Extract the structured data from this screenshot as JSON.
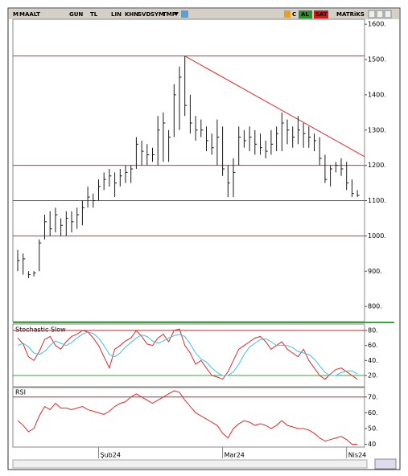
{
  "toolbar": {
    "logo": "M",
    "symbol": "MAALT",
    "buttons": [
      "GUN",
      "TL",
      "LIN",
      "KHN",
      "SVD",
      "SYM",
      "TMP"
    ],
    "right": [
      "C",
      "AL",
      "SAT",
      "MATRiKS"
    ]
  },
  "chart_data": [
    {
      "type": "ohlc",
      "categories": [
        null,
        null,
        null,
        null,
        null,
        null,
        null,
        null,
        null,
        null,
        null,
        null,
        null,
        null,
        null,
        "Şub24",
        null,
        null,
        null,
        null,
        null,
        null,
        null,
        null,
        null,
        null,
        null,
        null,
        null,
        null,
        null,
        null,
        null,
        null,
        null,
        null,
        null,
        null,
        "Mar24",
        null,
        null,
        null,
        null,
        null,
        null,
        null,
        null,
        null,
        null,
        null,
        null,
        null,
        null,
        null,
        null,
        null,
        null,
        null,
        null,
        null,
        null,
        "Nis24",
        null,
        null
      ],
      "high": [
        960,
        950,
        900,
        900,
        990,
        1060,
        1070,
        1080,
        1050,
        1070,
        1070,
        1080,
        1100,
        1140,
        1120,
        1160,
        1180,
        1190,
        1180,
        1190,
        1200,
        1200,
        1280,
        1270,
        1260,
        1250,
        1340,
        1350,
        1300,
        1430,
        1480,
        1510,
        1400,
        1340,
        1330,
        1310,
        1290,
        1330,
        1310,
        1200,
        1220,
        1310,
        1300,
        1310,
        1300,
        1290,
        1270,
        1300,
        1310,
        1350,
        1330,
        1310,
        1340,
        1320,
        1310,
        1290,
        1280,
        1230,
        1200,
        1210,
        1220,
        1210,
        1160,
        1130
      ],
      "low": [
        900,
        890,
        880,
        885,
        900,
        990,
        1000,
        1010,
        1000,
        1000,
        1010,
        1020,
        1030,
        1080,
        1080,
        1100,
        1130,
        1140,
        1110,
        1140,
        1150,
        1150,
        1190,
        1200,
        1200,
        1210,
        1200,
        1210,
        1210,
        1280,
        1300,
        1340,
        1290,
        1270,
        1280,
        1240,
        1230,
        1200,
        1170,
        1110,
        1110,
        1200,
        1250,
        1240,
        1230,
        1230,
        1220,
        1230,
        1240,
        1240,
        1260,
        1250,
        1260,
        1250,
        1250,
        1240,
        1200,
        1150,
        1140,
        1180,
        1170,
        1130,
        1110,
        1110
      ],
      "close": [
        930,
        935,
        890,
        895,
        980,
        1040,
        1020,
        1060,
        1030,
        1050,
        1040,
        1060,
        1080,
        1110,
        1100,
        1140,
        1160,
        1170,
        1150,
        1170,
        1180,
        1190,
        1260,
        1240,
        1230,
        1230,
        1300,
        1320,
        1280,
        1400,
        1450,
        1370,
        1320,
        1300,
        1300,
        1270,
        1250,
        1280,
        1190,
        1150,
        1180,
        1280,
        1270,
        1280,
        1260,
        1250,
        1240,
        1260,
        1290,
        1320,
        1300,
        1280,
        1300,
        1290,
        1280,
        1270,
        1220,
        1160,
        1190,
        1200,
        1190,
        1150,
        1120,
        1115
      ],
      "color": "#1a1a1a",
      "hlines": [
        1510,
        1200,
        1100,
        1000
      ],
      "hline_color": "#e0282c",
      "trendline": {
        "from": [
          31,
          1510
        ],
        "to": [
          64.3,
          1225
        ],
        "color": "#e0282c"
      },
      "ylim": [
        757,
        1614
      ],
      "yticks": [
        {
          "value": 800,
          "label": "800."
        },
        {
          "value": 900,
          "label": "900."
        },
        {
          "value": 1000,
          "label": "1000."
        },
        {
          "value": 1100,
          "label": "1100."
        },
        {
          "value": 1200,
          "label": "1200."
        },
        {
          "value": 1300,
          "label": "1300."
        },
        {
          "value": 1400,
          "label": "1400."
        },
        {
          "value": 1500,
          "label": "1500."
        },
        {
          "value": 1600,
          "label": "1600."
        }
      ]
    },
    {
      "type": "line",
      "title": "Stochastic Slow",
      "series": [
        {
          "color": "#e0282c",
          "values": [
            70,
            62,
            45,
            40,
            52,
            68,
            72,
            60,
            55,
            65,
            72,
            75,
            80,
            78,
            70,
            60,
            45,
            30,
            55,
            60,
            66,
            70,
            80,
            72,
            62,
            60,
            70,
            75,
            65,
            80,
            82,
            60,
            50,
            35,
            40,
            30,
            20,
            18,
            15,
            25,
            40,
            55,
            60,
            65,
            70,
            72,
            65,
            55,
            60,
            65,
            55,
            50,
            45,
            55,
            40,
            30,
            20,
            15,
            22,
            28,
            30,
            25,
            20,
            15
          ]
        },
        {
          "color": "#3cc4e6",
          "values": [
            60,
            63,
            58,
            50,
            48,
            52,
            60,
            66,
            63,
            60,
            64,
            70,
            75,
            78,
            76,
            70,
            60,
            48,
            45,
            50,
            58,
            64,
            70,
            74,
            72,
            66,
            63,
            66,
            70,
            73,
            75,
            72,
            62,
            50,
            42,
            38,
            30,
            24,
            20,
            20,
            25,
            35,
            48,
            58,
            63,
            68,
            69,
            65,
            60,
            60,
            60,
            57,
            52,
            50,
            48,
            42,
            33,
            24,
            20,
            20,
            24,
            26,
            26,
            22
          ]
        }
      ],
      "levels": [
        {
          "value": 80,
          "color": "#c0282c"
        },
        {
          "value": 20,
          "color": "#3aa53a"
        }
      ],
      "ylim": [
        5,
        87.5
      ],
      "yticks": [
        {
          "value": 20,
          "label": "20."
        },
        {
          "value": 40,
          "label": "40."
        },
        {
          "value": 60,
          "label": "60."
        },
        {
          "value": 80,
          "label": "80."
        }
      ]
    },
    {
      "type": "line",
      "title": "RSI",
      "series": [
        {
          "color": "#e0282c",
          "values": [
            55,
            52,
            48,
            50,
            58,
            64,
            62,
            66,
            63,
            63,
            62,
            63,
            64,
            62,
            61,
            60,
            59,
            61,
            64,
            66,
            67,
            70,
            72,
            70,
            68,
            66,
            68,
            70,
            72,
            74,
            73,
            68,
            64,
            60,
            58,
            56,
            54,
            52,
            47,
            44,
            50,
            53,
            55,
            54,
            52,
            53,
            52,
            50,
            52,
            55,
            52,
            51,
            50,
            50,
            49,
            47,
            44,
            42,
            43,
            44,
            45,
            43,
            40,
            40
          ]
        }
      ],
      "levels": [
        {
          "value": 70,
          "color": "#c0282c"
        }
      ],
      "ylim": [
        38.5,
        76
      ],
      "yticks": [
        {
          "value": 40,
          "label": "40"
        },
        {
          "value": 50,
          "label": "50."
        },
        {
          "value": 60,
          "label": "60."
        },
        {
          "value": 70,
          "label": "70."
        }
      ]
    }
  ]
}
